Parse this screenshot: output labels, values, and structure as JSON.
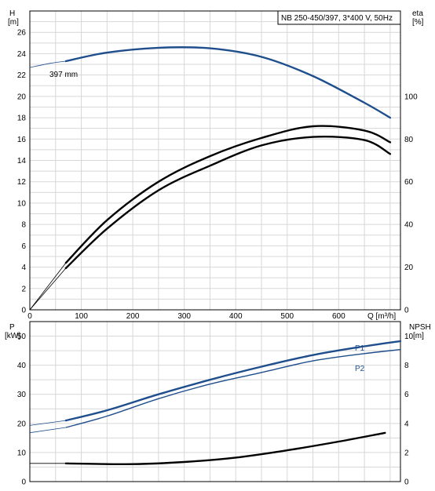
{
  "legend_box": "NB 250-450/397, 3*400 V, 50Hz",
  "top_chart": {
    "y_left_label": [
      "H",
      "[m]"
    ],
    "y_right_label": [
      "eta",
      "[%]"
    ],
    "x_label": "Q [m³/h]",
    "curve_label": "397 mm"
  },
  "bottom_chart": {
    "y_left_label": [
      "P",
      "[kW]"
    ],
    "y_right_label": [
      "NPSH",
      "[m]"
    ],
    "p1_label": "P1",
    "p2_label": "P2"
  },
  "chart_data": [
    {
      "type": "line",
      "title": "NB 250-450/397, 3*400 V, 50Hz",
      "xlabel": "Q [m³/h]",
      "ylabel": "H [m]",
      "y2label": "eta [%]",
      "xlim": [
        0,
        720
      ],
      "ylim": [
        0,
        28
      ],
      "y2lim": [
        0,
        140
      ],
      "x_ticks": [
        0,
        100,
        200,
        300,
        400,
        500,
        600
      ],
      "y_ticks": [
        0,
        2,
        4,
        6,
        8,
        10,
        12,
        14,
        16,
        18,
        20,
        22,
        24,
        26
      ],
      "y2_ticks": [
        0,
        20,
        40,
        60,
        80,
        100
      ],
      "grid": true,
      "series": [
        {
          "name": "397 mm",
          "axis": "H",
          "color": "#1f4e8c",
          "x": [
            0,
            40,
            70,
            150,
            250,
            350,
            450,
            550,
            650,
            700
          ],
          "y": [
            22.7,
            23.1,
            23.3,
            24.1,
            24.55,
            24.5,
            23.7,
            21.9,
            19.4,
            18.0
          ]
        },
        {
          "axis": "eta",
          "color": "#000000",
          "x": [
            0,
            70,
            150,
            250,
            350,
            450,
            550,
            650,
            700
          ],
          "y": [
            0,
            22,
            42,
            60,
            72,
            80.5,
            86,
            84,
            78.5
          ]
        },
        {
          "axis": "eta",
          "color": "#000000",
          "x": [
            0,
            70,
            150,
            250,
            350,
            450,
            550,
            650,
            700
          ],
          "y": [
            0,
            19.5,
            38,
            56,
            67.5,
            77,
            81,
            79.5,
            73
          ]
        }
      ]
    },
    {
      "type": "line",
      "xlim": [
        0,
        720
      ],
      "ylim": [
        0,
        55
      ],
      "y2lim": [
        0,
        11
      ],
      "ylabel": "P [kW]",
      "y2label": "NPSH [m]",
      "y_ticks": [
        0,
        10,
        20,
        30,
        40,
        50
      ],
      "y2_ticks": [
        0,
        2,
        4,
        6,
        8,
        10
      ],
      "grid": true,
      "series": [
        {
          "name": "P1",
          "axis": "P",
          "color": "#1f4e8c",
          "x": [
            0,
            70,
            150,
            250,
            350,
            450,
            550,
            650,
            720
          ],
          "y": [
            19.3,
            21,
            24.5,
            30,
            35,
            39.5,
            43.5,
            46.5,
            48.3
          ]
        },
        {
          "name": "P2",
          "axis": "P",
          "color": "#1f4e8c",
          "x": [
            0,
            70,
            150,
            250,
            350,
            450,
            550,
            650,
            720
          ],
          "y": [
            16.8,
            18.6,
            22.5,
            28.5,
            33.5,
            37.5,
            41.5,
            44,
            45.4
          ]
        },
        {
          "axis": "NPSH",
          "color": "#000000",
          "x": [
            0,
            70,
            200,
            300,
            400,
            500,
            600,
            690
          ],
          "y": [
            1.25,
            1.25,
            1.2,
            1.35,
            1.65,
            2.15,
            2.75,
            3.35
          ]
        }
      ]
    }
  ]
}
